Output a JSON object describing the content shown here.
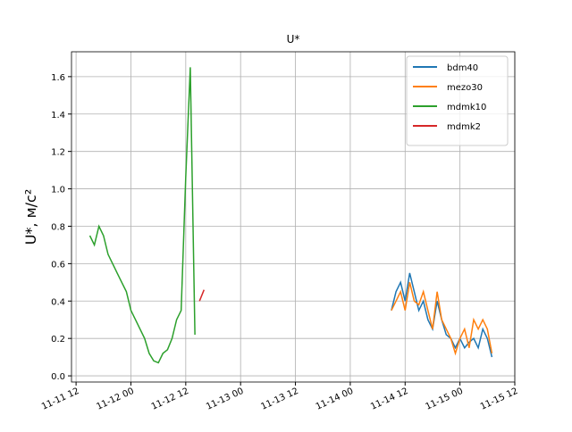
{
  "chart_data": {
    "type": "line",
    "title": "U*",
    "y_label": "U*, м/c²",
    "xlim": [
      "11-11 11",
      "11-15 12"
    ],
    "xticks": [
      "11-11 12",
      "11-12 00",
      "11-12 12",
      "11-13 00",
      "11-13 12",
      "11-14 00",
      "11-14 12",
      "11-15 00",
      "11-15 12"
    ],
    "ylim": [
      -0.033,
      1.733
    ],
    "yticks": [
      {
        "value": 0,
        "label": "0.0"
      },
      0.2,
      0.4,
      0.6,
      0.8,
      {
        "value": 1,
        "label": "1.0"
      },
      1.2,
      1.4,
      1.6
    ],
    "grid": true,
    "legend": "upper right",
    "series": [
      {
        "name": "bdm40",
        "color": "#1f77b4",
        "x": [
          "11-14 09",
          "11-14 10",
          "11-14 11",
          "11-14 12",
          "11-14 13",
          "11-14 14",
          "11-14 15",
          "11-14 16",
          "11-14 17",
          "11-14 18",
          "11-14 19",
          "11-14 20",
          "11-14 21",
          "11-14 22",
          "11-14 23",
          "11-15 00",
          "11-15 01",
          "11-15 02",
          "11-15 03",
          "11-15 04",
          "11-15 05",
          "11-15 06",
          "11-15 07"
        ],
        "values": [
          0.35,
          0.45,
          0.5,
          0.4,
          0.55,
          0.45,
          0.35,
          0.4,
          0.3,
          0.25,
          0.4,
          0.3,
          0.22,
          0.2,
          0.15,
          0.2,
          0.15,
          0.18,
          0.2,
          0.15,
          0.25,
          0.2,
          0.1
        ]
      },
      {
        "name": "mezo30",
        "color": "#ff7f0e",
        "x": [
          "11-14 09",
          "11-14 10",
          "11-14 11",
          "11-14 12",
          "11-14 13",
          "11-14 14",
          "11-14 15",
          "11-14 16",
          "11-14 17",
          "11-14 18",
          "11-14 19",
          "11-14 20",
          "11-14 21",
          "11-14 22",
          "11-14 23",
          "11-15 00",
          "11-15 01",
          "11-15 02",
          "11-15 03",
          "11-15 04",
          "11-15 05",
          "11-15 06",
          "11-15 07"
        ],
        "values": [
          0.35,
          0.4,
          0.45,
          0.35,
          0.5,
          0.4,
          0.38,
          0.45,
          0.35,
          0.25,
          0.45,
          0.3,
          0.25,
          0.2,
          0.12,
          0.2,
          0.25,
          0.15,
          0.3,
          0.25,
          0.3,
          0.25,
          0.12
        ]
      },
      {
        "name": "mdmk10",
        "color": "#2ca02c",
        "x": [
          "11-11 15",
          "11-11 16",
          "11-11 17",
          "11-11 18",
          "11-11 19",
          "11-11 20",
          "11-11 21",
          "11-11 22",
          "11-11 23",
          "11-12 00",
          "11-12 01",
          "11-12 02",
          "11-12 03",
          "11-12 04",
          "11-12 05",
          "11-12 06",
          "11-12 07",
          "11-12 08",
          "11-12 09",
          "11-12 10",
          "11-12 11",
          "11-12 12",
          "11-12 13",
          "11-12 14"
        ],
        "values": [
          0.75,
          0.7,
          0.8,
          0.75,
          0.65,
          0.6,
          0.55,
          0.5,
          0.45,
          0.35,
          0.3,
          0.25,
          0.2,
          0.12,
          0.08,
          0.07,
          0.12,
          0.14,
          0.2,
          0.3,
          0.35,
          1.06,
          1.65,
          0.22
        ]
      },
      {
        "name": "mdmk2",
        "color": "#d62728",
        "x": [
          "11-12 15",
          "11-12 16"
        ],
        "values": [
          0.4,
          0.46
        ]
      }
    ]
  }
}
